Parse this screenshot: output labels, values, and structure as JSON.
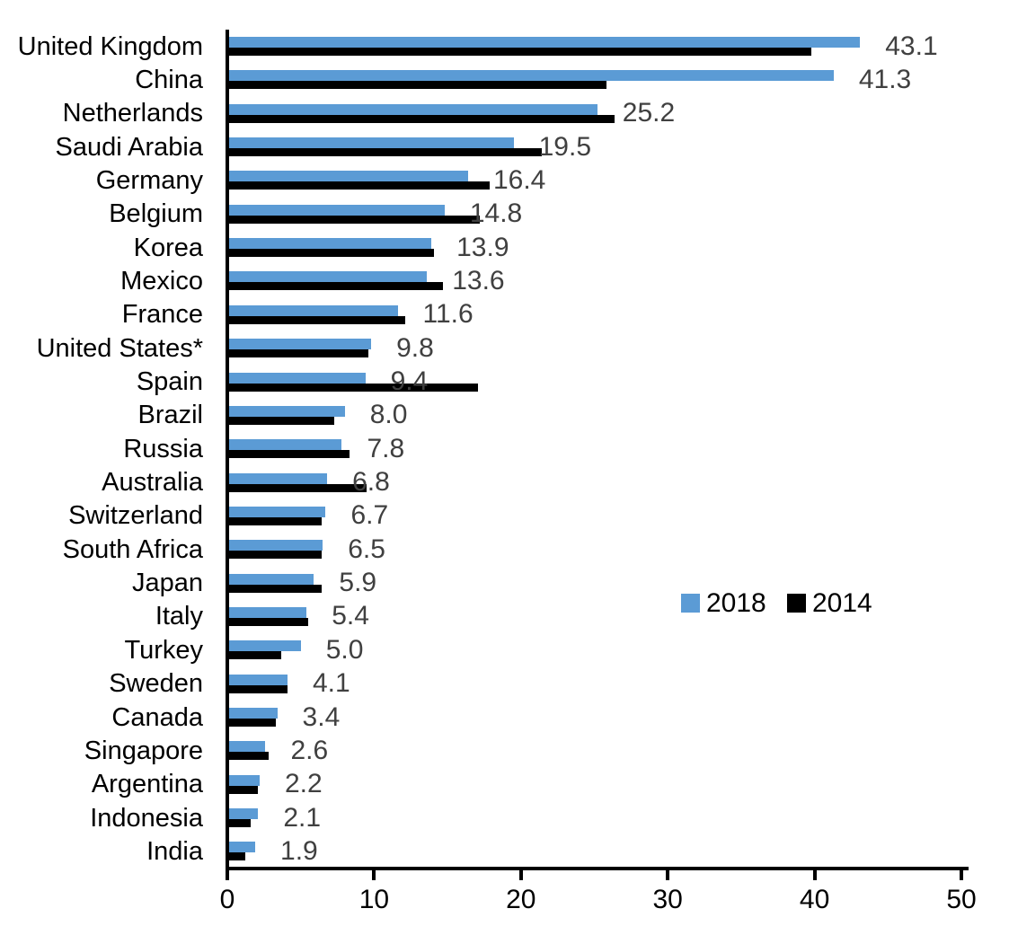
{
  "chart_data": {
    "type": "bar",
    "orientation": "horizontal",
    "title": "",
    "xlabel": "",
    "ylabel": "",
    "xlim": [
      0,
      50
    ],
    "x_ticks": [
      "0",
      "10",
      "20",
      "30",
      "40",
      "50"
    ],
    "grid": false,
    "value_label_color": "#404040",
    "categories": [
      "United Kingdom",
      "China",
      "Netherlands",
      "Saudi Arabia",
      "Germany",
      "Belgium",
      "Korea",
      "Mexico",
      "France",
      "United States*",
      "Spain",
      "Brazil",
      "Russia",
      "Australia",
      "Switzerland",
      "South Africa",
      "Japan",
      "Italy",
      "Turkey",
      "Sweden",
      "Canada",
      "Singapore",
      "Argentina",
      "Indonesia",
      "India"
    ],
    "series": [
      {
        "name": "2018",
        "color": "#5B9BD5",
        "data_labels": true,
        "values": [
          43.1,
          41.3,
          25.2,
          19.5,
          16.4,
          14.8,
          13.9,
          13.6,
          11.6,
          9.8,
          9.4,
          8.0,
          7.8,
          6.8,
          6.7,
          6.5,
          5.9,
          5.4,
          5.0,
          4.1,
          3.4,
          2.6,
          2.2,
          2.1,
          1.9
        ]
      },
      {
        "name": "2014",
        "color": "#000000",
        "data_labels": false,
        "values": [
          39.8,
          25.8,
          26.4,
          21.4,
          17.9,
          17.2,
          14.1,
          14.7,
          12.1,
          9.6,
          17.1,
          7.3,
          8.3,
          9.5,
          6.4,
          6.4,
          6.4,
          5.5,
          3.7,
          4.1,
          3.3,
          2.8,
          2.1,
          1.6,
          1.2
        ]
      }
    ],
    "legend": {
      "position": "middle-right",
      "entries": [
        {
          "label": "2018",
          "color": "#5B9BD5"
        },
        {
          "label": "2014",
          "color": "#000000"
        }
      ]
    }
  }
}
